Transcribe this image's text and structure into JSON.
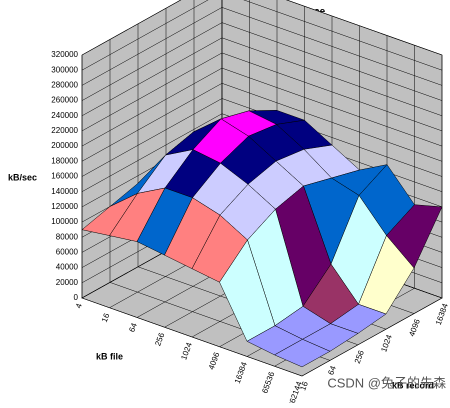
{
  "chart_data": {
    "type": "surface3d",
    "title": "Read Performance",
    "y_label": "kB/sec",
    "x_label": "kB file",
    "z_label": "kB record",
    "categories": [
      "4",
      "16",
      "64",
      "256",
      "1024",
      "4096",
      "16384",
      "65536",
      "262144"
    ],
    "series": [
      {
        "name": "16",
        "values": [
          90000,
          95000,
          100000,
          95000,
          90000,
          85000,
          20000,
          15000,
          12000
        ]
      },
      {
        "name": "64",
        "values": [
          100000,
          130000,
          150000,
          150000,
          140000,
          120000,
          20000,
          15000,
          12000
        ]
      },
      {
        "name": "256",
        "values": [
          110000,
          160000,
          180000,
          175000,
          160000,
          140000,
          25000,
          15000,
          15000
        ]
      },
      {
        "name": "1024",
        "values": [
          120000,
          170000,
          200000,
          190000,
          170000,
          150000,
          60000,
          20000,
          20000
        ]
      },
      {
        "name": "4096",
        "values": [
          110000,
          160000,
          190000,
          185000,
          165000,
          140000,
          130000,
          90000,
          60000
        ]
      },
      {
        "name": "16384",
        "values": [
          100000,
          150000,
          170000,
          170000,
          150000,
          130000,
          150000,
          110000,
          120000
        ]
      }
    ],
    "ylim": [
      0,
      320000
    ],
    "yticks": [
      0,
      20000,
      40000,
      60000,
      80000,
      100000,
      120000,
      140000,
      160000,
      180000,
      200000,
      220000,
      240000,
      260000,
      280000,
      300000,
      320000
    ],
    "band_colors": [
      "#9999ff",
      "#993366",
      "#ffffcc",
      "#ccffff",
      "#660066",
      "#ff8080",
      "#0066cc",
      "#ccccff",
      "#000080",
      "#ff00ff",
      "#ffff00",
      "#00ffff",
      "#800080",
      "#800000",
      "#008080",
      "#0000ff"
    ],
    "grid": true,
    "watermark": "CSDN @兔子的先森"
  }
}
